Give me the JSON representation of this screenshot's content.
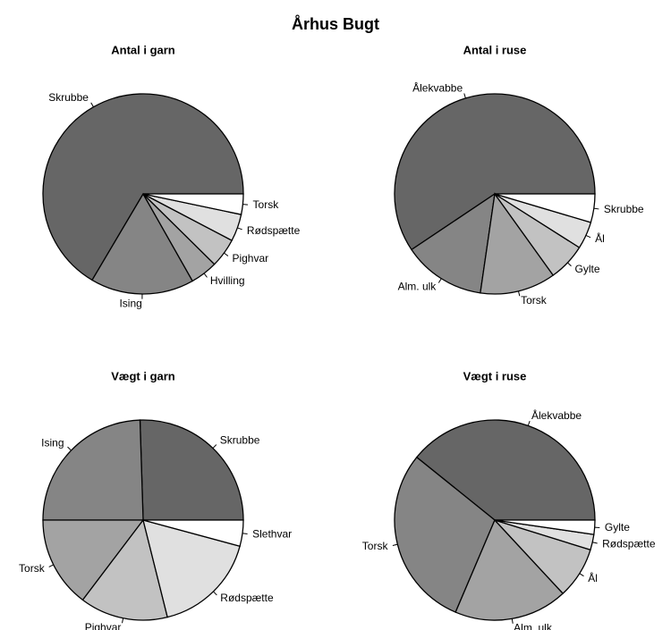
{
  "title": "Århus Bugt",
  "chart_data": [
    {
      "type": "pie",
      "title": "Antal i garn",
      "categories": [
        "Skrubbe",
        "Ising",
        "Hvilling",
        "Pighvar",
        "Rødspætte",
        "Torsk"
      ],
      "values": [
        66.5,
        16.7,
        4.4,
        4.7,
        4.4,
        3.3
      ],
      "colors": [
        "#666666",
        "#858585",
        "#a3a3a3",
        "#c2c2c2",
        "#e0e0e0",
        "#ffffff"
      ]
    },
    {
      "type": "pie",
      "title": "Antal i ruse",
      "categories": [
        "Ålekvabbe",
        "Alm. ulk",
        "Torsk",
        "Gylte",
        "Ål",
        "Skrubbe"
      ],
      "values": [
        59.4,
        13.3,
        12.2,
        6.1,
        4.4,
        4.6
      ],
      "colors": [
        "#666666",
        "#858585",
        "#a3a3a3",
        "#c2c2c2",
        "#e0e0e0",
        "#ffffff"
      ]
    },
    {
      "type": "pie",
      "title": "Vægt i garn",
      "categories": [
        "Skrubbe",
        "Ising",
        "Torsk",
        "Pighvar",
        "Rødspætte",
        "Slethvar"
      ],
      "values": [
        25.5,
        24.5,
        14.7,
        14.2,
        16.9,
        4.2
      ],
      "colors": [
        "#666666",
        "#858585",
        "#a3a3a3",
        "#c2c2c2",
        "#e0e0e0",
        "#ffffff"
      ]
    },
    {
      "type": "pie",
      "title": "Vægt i ruse",
      "categories": [
        "Ålekvabbe",
        "Torsk",
        "Alm. ulk",
        "Ål",
        "Rødspætte",
        "Gylte"
      ],
      "values": [
        39.2,
        29.4,
        18.3,
        8.3,
        2.5,
        2.3
      ],
      "colors": [
        "#666666",
        "#858585",
        "#a3a3a3",
        "#c2c2c2",
        "#e0e0e0",
        "#ffffff"
      ]
    }
  ]
}
